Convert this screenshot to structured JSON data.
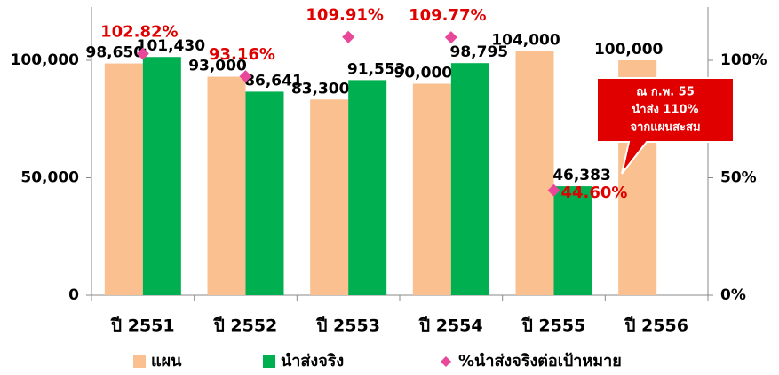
{
  "chart_data": {
    "type": "bar",
    "categories": [
      "ปี 2551",
      "ปี 2552",
      "ปี 2553",
      "ปี 2554",
      "ปี 2555",
      "ปี 2556"
    ],
    "series": [
      {
        "name": "แผน",
        "color": "#fac090",
        "values": [
          98650,
          93000,
          83300,
          90000,
          104000,
          100000
        ],
        "value_labels": [
          "98,650",
          "93,000",
          "83,300",
          "90,000",
          "104,000",
          "100,000"
        ]
      },
      {
        "name": "นำส่งจริง",
        "color": "#00b050",
        "values": [
          101430,
          86641,
          91553,
          98795,
          46383,
          null
        ],
        "value_labels": [
          "101,430",
          "86,641",
          "91,553",
          "98,795",
          "46,383",
          null
        ]
      },
      {
        "name": "%นำส่งจริงต่อเป้าหมาย",
        "color": "#e8479a",
        "axis": "y2",
        "type": "scatter",
        "values": [
          102.82,
          93.16,
          109.91,
          109.77,
          44.6,
          null
        ],
        "value_labels": [
          "102.82%",
          "93.16%",
          "109.91%",
          "109.77%",
          "44.60%",
          null
        ]
      }
    ],
    "ylim": [
      0,
      120000
    ],
    "yticks": [
      0,
      {
        "value": 50000,
        "label": "50,000"
      },
      {
        "value": 100000,
        "label": "100,000"
      }
    ],
    "y2lim": [
      0,
      120
    ],
    "y2ticks": [
      {
        "value": 0,
        "label": "0%"
      },
      {
        "value": 50,
        "label": "50%"
      },
      {
        "value": 100,
        "label": "100%"
      }
    ],
    "annotation": [
      "ณ ก.พ. 55",
      "นำส่ง 110%",
      "จากแผนสะสม"
    ],
    "legend": "bottom"
  }
}
